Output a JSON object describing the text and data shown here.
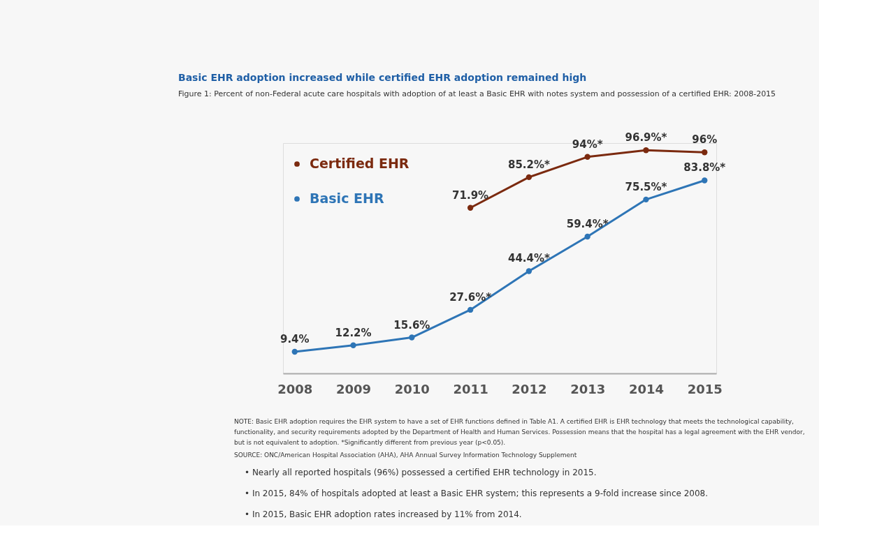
{
  "chart_data": {
    "type": "line",
    "title": "Basic EHR adoption increased while certified EHR adoption remained high",
    "subtitle": "Figure 1: Percent of non-Federal acute care hospitals with adoption of at least a Basic EHR with notes system and possession of a certified EHR: 2008-2015",
    "categories": [
      "2008",
      "2009",
      "2010",
      "2011",
      "2012",
      "2013",
      "2014",
      "2015"
    ],
    "series": [
      {
        "name": "Certified EHR",
        "color": "#7b2a0f",
        "values": [
          null,
          null,
          null,
          71.9,
          85.2,
          94,
          96.9,
          96
        ],
        "value_labels": [
          null,
          null,
          null,
          "71.9%",
          "85.2%*",
          "94%*",
          "96.9%*",
          "96%"
        ]
      },
      {
        "name": "Basic EHR",
        "color": "#2e75b6",
        "values": [
          9.4,
          12.2,
          15.6,
          27.6,
          44.4,
          59.4,
          75.5,
          83.8
        ],
        "value_labels": [
          "9.4%",
          "12.2%",
          "15.6%",
          "27.6%*",
          "44.4%*",
          "59.4%*",
          "75.5%*",
          "83.8%*"
        ]
      }
    ],
    "ylim": [
      0,
      100
    ],
    "tick_labels": "x",
    "grid": false,
    "legend": "top left",
    "marker": "circle",
    "line_style": "solid",
    "annotations": [
      "NOTE: Basic EHR adoption requires the EHR system to have a set of EHR functions defined in Table A1. A certified EHR is EHR technology that meets the technological capability, functionality, and security requirements adopted by the Department of Health and Human Services. Possession means that the hospital has a legal agreement with the EHR vendor, but is not equivalent to adoption. *Significantly different from previous year (p<0.05).",
      "SOURCE: ONC/American Hospital Association (AHA), AHA Annual Survey Information Technology Supplement",
      "•  Nearly all reported hospitals (96%) possessed a certified EHR technology in 2015.",
      "•  In 2015, 84% of hospitals adopted at least a Basic EHR system; this represents a 9-fold increase since 2008.",
      "•  In 2015, Basic EHR adoption rates increased by 11% from 2014."
    ]
  }
}
